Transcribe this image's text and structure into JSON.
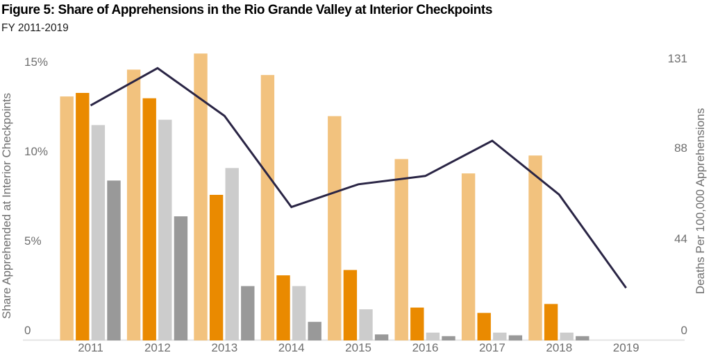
{
  "header": {
    "title": "Figure 5: Share of Apprehensions in the Rio Grande Valley at Interior Checkpoints",
    "subtitle": "FY 2011-2019"
  },
  "colors": {
    "title_text": "#000000",
    "subtitle_text": "#1a1a1a",
    "axis_text": "#6e6e6e",
    "baseline": "#e4e4e4",
    "line": "#2a2545"
  },
  "chart_data": {
    "type": "bar",
    "subtype": "grouped-bars-with-line-overlay-dual-axis",
    "title": "Figure 5: Share of Apprehensions in the Rio Grande Valley at Interior Checkpoints",
    "subtitle": "FY 2011-2019",
    "categories": [
      "2011",
      "2012",
      "2013",
      "2014",
      "2015",
      "2016",
      "2017",
      "2018",
      "2019"
    ],
    "series": [
      {
        "name": "light-orange-bars (share apprehended %, left axis)",
        "color": "#f2c27e",
        "values": [
          13.6,
          15.1,
          16.0,
          14.8,
          12.5,
          10.1,
          9.3,
          10.3,
          0
        ]
      },
      {
        "name": "orange-bars (share apprehended %, left axis)",
        "color": "#ea8a00",
        "values": [
          13.8,
          13.5,
          8.1,
          3.6,
          3.9,
          1.8,
          1.5,
          2.0,
          0
        ]
      },
      {
        "name": "light-gray-bars (share apprehended %, left axis)",
        "color": "#cccccc",
        "values": [
          12.0,
          12.3,
          9.6,
          3.0,
          1.7,
          0.4,
          0.4,
          0.4,
          0
        ]
      },
      {
        "name": "dark-gray-bars (share apprehended %, left axis)",
        "color": "#999999",
        "values": [
          8.9,
          6.9,
          3.0,
          1.0,
          0.3,
          0.2,
          0.25,
          0.2,
          0
        ]
      }
    ],
    "line_series": {
      "name": "Deaths Per 100,000 Apprehensions",
      "color": "#2a2545",
      "axis": "right",
      "values": [
        113,
        131,
        108,
        64,
        75,
        79,
        96,
        70,
        25
      ]
    },
    "left_axis": {
      "title": "Share Apprehended at Interior Checkpoints",
      "ticks": [
        {
          "label": "0",
          "value": 0
        },
        {
          "label": "5%",
          "value": 5
        },
        {
          "label": "10%",
          "value": 10
        },
        {
          "label": "15%",
          "value": 15
        }
      ],
      "range": [
        0,
        16.5
      ]
    },
    "right_axis": {
      "title": "Deaths Per 100,000 Apprehensions",
      "ticks": [
        {
          "label": "0",
          "value": 0
        },
        {
          "label": "44",
          "value": 44
        },
        {
          "label": "88",
          "value": 88
        },
        {
          "label": "131",
          "value": 131
        }
      ],
      "range": [
        0,
        136
      ]
    },
    "legend": "none",
    "gridlines": "none (baseline only)"
  }
}
